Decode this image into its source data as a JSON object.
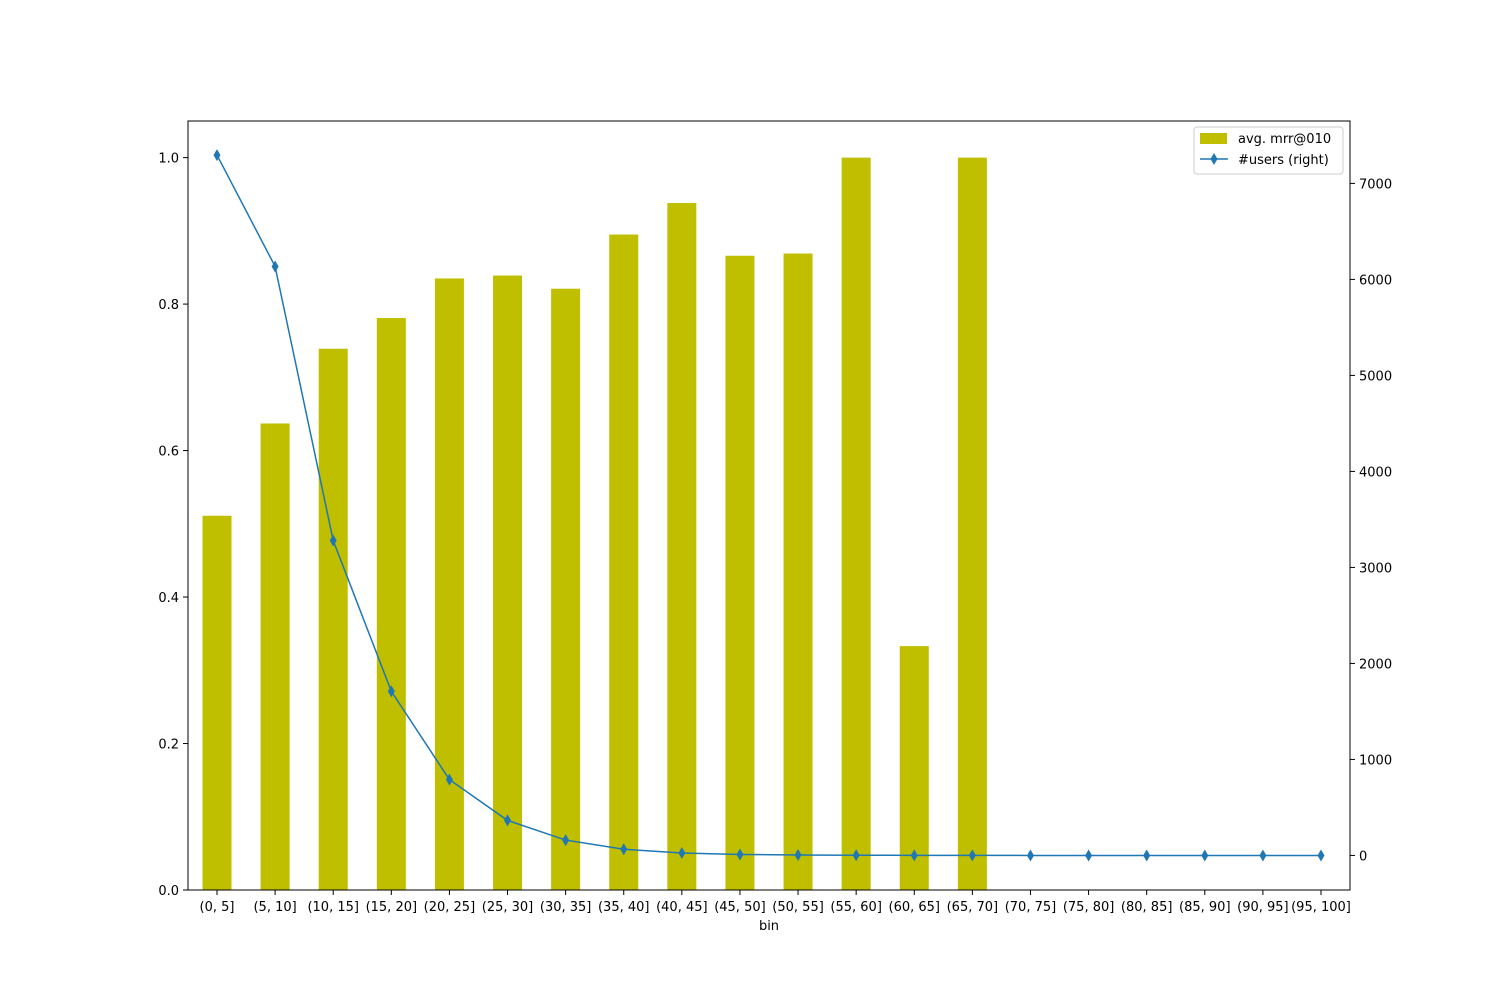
{
  "chart_data": {
    "type": "bar",
    "categories": [
      "(0, 5]",
      "(5, 10]",
      "(10, 15]",
      "(15, 20]",
      "(20, 25]",
      "(25, 30]",
      "(30, 35]",
      "(35, 40]",
      "(40, 45]",
      "(45, 50]",
      "(50, 55]",
      "(55, 60]",
      "(60, 65]",
      "(65, 70]",
      "(70, 75]",
      "(75, 80]",
      "(80, 85]",
      "(85, 90]",
      "(90, 95]",
      "(95, 100]"
    ],
    "series": [
      {
        "name": "avg. mrr@010",
        "type": "bar",
        "axis": "left",
        "color": "#bfbf00",
        "values": [
          0.511,
          0.637,
          0.739,
          0.781,
          0.835,
          0.839,
          0.821,
          0.895,
          0.938,
          0.866,
          0.869,
          1.0,
          0.333,
          1.0,
          null,
          null,
          null,
          null,
          null,
          null
        ]
      },
      {
        "name": "#users (right)",
        "type": "line",
        "marker": "thin-diamond",
        "axis": "right",
        "color": "#1f77b4",
        "values": [
          7295,
          6135,
          3280,
          1710,
          790,
          365,
          160,
          65,
          25,
          10,
          5,
          2,
          1,
          1,
          0,
          0,
          0,
          0,
          0,
          0
        ]
      }
    ],
    "xlabel": "bin",
    "ylabel": "",
    "y2label": "",
    "ylim": [
      0,
      1.05
    ],
    "y2lim": [
      -360,
      7650
    ],
    "yticks": [
      "0.0",
      "0.2",
      "0.4",
      "0.6",
      "0.8",
      "1.0"
    ],
    "y2ticks": [
      "0",
      "1000",
      "2000",
      "3000",
      "4000",
      "5000",
      "6000",
      "7000"
    ],
    "grid": false,
    "legend_position": "top-right"
  }
}
